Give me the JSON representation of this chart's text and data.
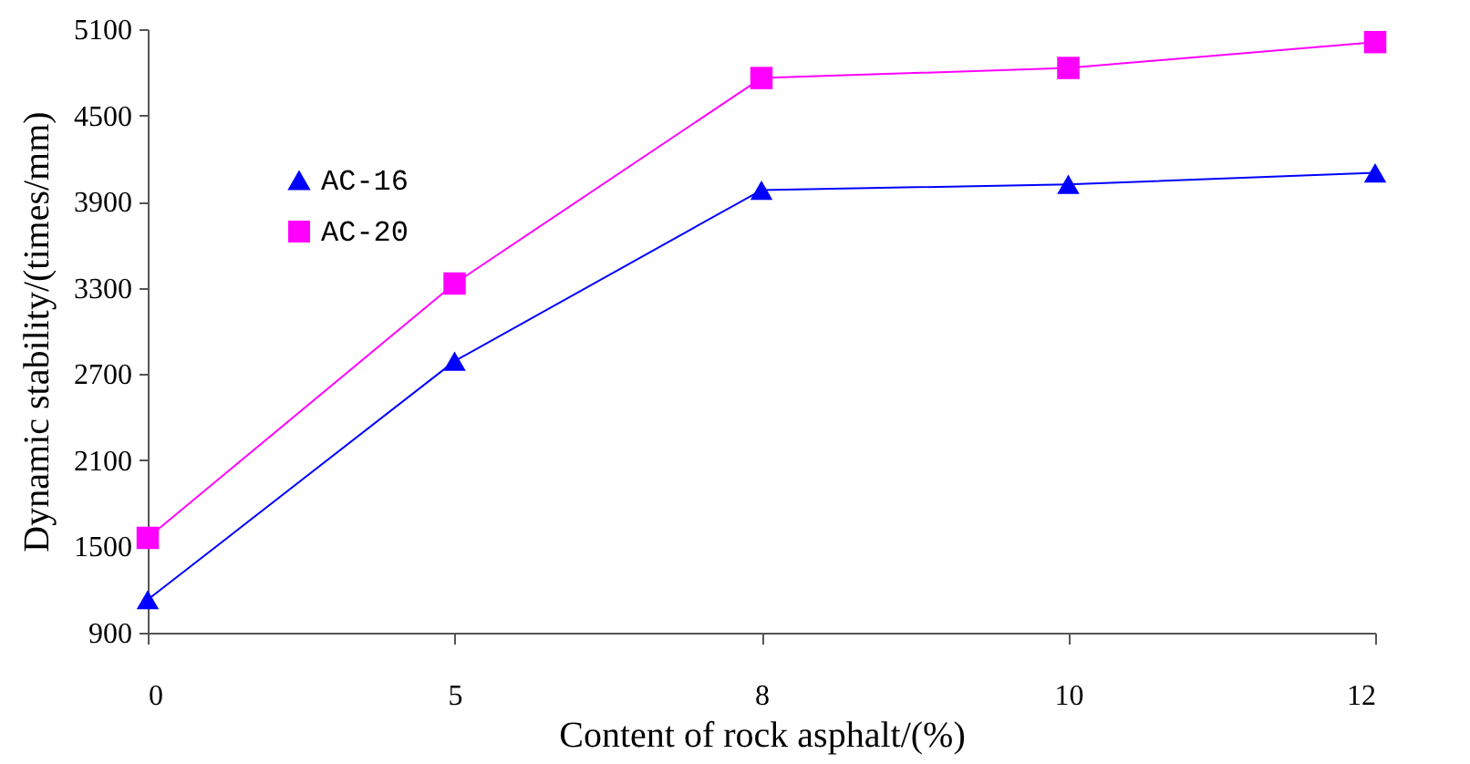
{
  "chart_data": {
    "type": "line",
    "xlabel": "Content of rock asphalt/(%)",
    "ylabel": "Dynamic stability/(times/mm)",
    "categories": [
      "0",
      "5",
      "8",
      "10",
      "12"
    ],
    "series": [
      {
        "name": "AC-16",
        "color": "#0000ff",
        "marker": "triangle",
        "values": [
          1130,
          2790,
          3980,
          4020,
          4100
        ]
      },
      {
        "name": "AC-20",
        "color": "#ff00ff",
        "marker": "square",
        "values": [
          1560,
          3330,
          4760,
          4830,
          5010
        ]
      }
    ],
    "ylim": [
      900,
      5100
    ],
    "yticks": [
      900,
      1500,
      2100,
      2700,
      3300,
      3900,
      4500,
      5100
    ],
    "grid": false,
    "legend": "top left",
    "line_style": "solid"
  }
}
